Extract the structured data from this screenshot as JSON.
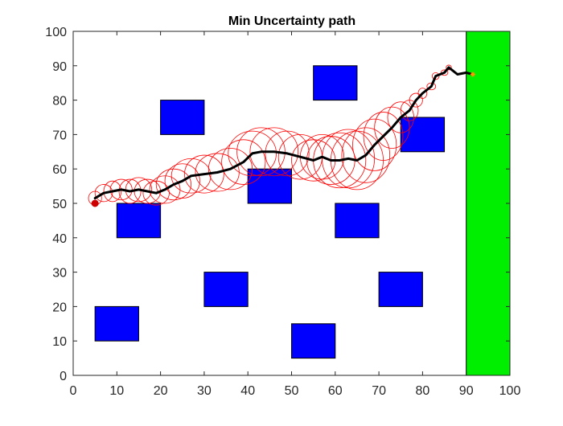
{
  "chart_data": {
    "type": "scatter",
    "title": "Min Uncertainty path",
    "xlabel": "",
    "ylabel": "",
    "xlim": [
      0,
      100
    ],
    "ylim": [
      0,
      100
    ],
    "xticks": [
      0,
      10,
      20,
      30,
      40,
      50,
      60,
      70,
      80,
      90,
      100
    ],
    "yticks": [
      0,
      10,
      20,
      30,
      40,
      50,
      60,
      70,
      80,
      90,
      100
    ],
    "grid": false,
    "legend": "none",
    "colors": {
      "obstacle": "#0000ff",
      "goal": "#00ee00",
      "path": "#000000",
      "uncertainty": "#ff0000",
      "start": "#cc0000",
      "end": "#ff9900"
    },
    "obstacles": [
      {
        "x0": 10,
        "y0": 40,
        "x1": 20,
        "y1": 50
      },
      {
        "x0": 20,
        "y0": 70,
        "x1": 30,
        "y1": 80
      },
      {
        "x0": 5,
        "y0": 10,
        "x1": 15,
        "y1": 20
      },
      {
        "x0": 30,
        "y0": 20,
        "x1": 40,
        "y1": 30
      },
      {
        "x0": 40,
        "y0": 50,
        "x1": 50,
        "y1": 60
      },
      {
        "x0": 50,
        "y0": 5,
        "x1": 60,
        "y1": 15
      },
      {
        "x0": 55,
        "y0": 80,
        "x1": 65,
        "y1": 90
      },
      {
        "x0": 60,
        "y0": 40,
        "x1": 70,
        "y1": 50
      },
      {
        "x0": 70,
        "y0": 20,
        "x1": 80,
        "y1": 30
      },
      {
        "x0": 75,
        "y0": 65,
        "x1": 85,
        "y1": 75
      }
    ],
    "goal_region": {
      "x0": 90,
      "y0": 0,
      "x1": 100,
      "y1": 100
    },
    "path": [
      [
        5,
        51.5
      ],
      [
        7,
        53
      ],
      [
        9,
        53.5
      ],
      [
        11,
        54
      ],
      [
        13,
        53.5
      ],
      [
        15,
        54
      ],
      [
        17,
        53.5
      ],
      [
        19,
        53
      ],
      [
        21,
        54
      ],
      [
        23,
        55.5
      ],
      [
        25,
        56.5
      ],
      [
        27,
        58
      ],
      [
        30,
        58.5
      ],
      [
        33,
        59
      ],
      [
        36,
        60
      ],
      [
        39,
        62
      ],
      [
        41,
        64.5
      ],
      [
        43,
        65
      ],
      [
        46,
        65
      ],
      [
        49,
        64.5
      ],
      [
        52,
        63.5
      ],
      [
        55,
        62.5
      ],
      [
        57,
        63.5
      ],
      [
        59,
        62.5
      ],
      [
        61,
        62.5
      ],
      [
        63,
        63
      ],
      [
        65,
        62.5
      ],
      [
        67,
        64
      ],
      [
        69,
        67
      ],
      [
        71,
        69.5
      ],
      [
        73,
        72
      ],
      [
        75,
        75
      ],
      [
        77,
        77
      ],
      [
        78.5,
        80
      ],
      [
        80,
        82
      ],
      [
        82,
        84
      ],
      [
        83,
        87
      ],
      [
        85,
        88
      ],
      [
        86,
        89.5
      ],
      [
        88,
        87.5
      ],
      [
        90,
        88
      ],
      [
        91.5,
        87.5
      ]
    ],
    "uncertainty_ellipses": [
      {
        "x": 5,
        "y": 51.5,
        "rx": 1.5,
        "ry": 2
      },
      {
        "x": 7,
        "y": 53,
        "rx": 2,
        "ry": 2.5
      },
      {
        "x": 9,
        "y": 53.5,
        "rx": 2,
        "ry": 3
      },
      {
        "x": 11,
        "y": 54,
        "rx": 2.5,
        "ry": 3
      },
      {
        "x": 13,
        "y": 53.5,
        "rx": 2.5,
        "ry": 3.5
      },
      {
        "x": 15,
        "y": 54,
        "rx": 3,
        "ry": 3.5
      },
      {
        "x": 17,
        "y": 53.5,
        "rx": 3,
        "ry": 3.5
      },
      {
        "x": 19,
        "y": 53,
        "rx": 3,
        "ry": 3.5
      },
      {
        "x": 21,
        "y": 54,
        "rx": 3.5,
        "ry": 4
      },
      {
        "x": 23,
        "y": 55.5,
        "rx": 4,
        "ry": 4.5
      },
      {
        "x": 25,
        "y": 56.5,
        "rx": 4,
        "ry": 5
      },
      {
        "x": 27,
        "y": 58,
        "rx": 4.5,
        "ry": 5
      },
      {
        "x": 30,
        "y": 58.5,
        "rx": 4.5,
        "ry": 5.5
      },
      {
        "x": 33,
        "y": 59,
        "rx": 5,
        "ry": 5.5
      },
      {
        "x": 36,
        "y": 60,
        "rx": 5,
        "ry": 6
      },
      {
        "x": 39,
        "y": 62,
        "rx": 5,
        "ry": 6.5
      },
      {
        "x": 41,
        "y": 64.5,
        "rx": 5.5,
        "ry": 6.5
      },
      {
        "x": 43,
        "y": 65,
        "rx": 5.5,
        "ry": 7
      },
      {
        "x": 46,
        "y": 65,
        "rx": 5.5,
        "ry": 7
      },
      {
        "x": 49,
        "y": 64.5,
        "rx": 5,
        "ry": 6.5
      },
      {
        "x": 52,
        "y": 63.5,
        "rx": 5,
        "ry": 6.5
      },
      {
        "x": 55,
        "y": 62.5,
        "rx": 5,
        "ry": 6
      },
      {
        "x": 57,
        "y": 63.5,
        "rx": 5,
        "ry": 6.5
      },
      {
        "x": 59,
        "y": 62.5,
        "rx": 5.5,
        "ry": 7
      },
      {
        "x": 61,
        "y": 62.5,
        "rx": 6,
        "ry": 8
      },
      {
        "x": 63,
        "y": 63,
        "rx": 6,
        "ry": 8.5
      },
      {
        "x": 65,
        "y": 62.5,
        "rx": 6,
        "ry": 8.5
      },
      {
        "x": 67,
        "y": 64,
        "rx": 5.5,
        "ry": 8
      },
      {
        "x": 69,
        "y": 67,
        "rx": 5,
        "ry": 7.5
      },
      {
        "x": 71,
        "y": 69.5,
        "rx": 4.5,
        "ry": 7
      },
      {
        "x": 73,
        "y": 72,
        "rx": 4,
        "ry": 6
      },
      {
        "x": 75,
        "y": 75,
        "rx": 3,
        "ry": 4.5
      },
      {
        "x": 77,
        "y": 77,
        "rx": 2,
        "ry": 3
      },
      {
        "x": 78.5,
        "y": 80,
        "rx": 1.5,
        "ry": 2
      },
      {
        "x": 80,
        "y": 82,
        "rx": 1,
        "ry": 1.5
      },
      {
        "x": 82,
        "y": 84,
        "rx": 1,
        "ry": 1
      },
      {
        "x": 83,
        "y": 87,
        "rx": 0.8,
        "ry": 1
      },
      {
        "x": 85,
        "y": 88,
        "rx": 0.8,
        "ry": 0.8
      },
      {
        "x": 86,
        "y": 89.5,
        "rx": 0.6,
        "ry": 0.7
      }
    ],
    "start": [
      5,
      50
    ],
    "end": [
      91.5,
      87.5
    ]
  }
}
